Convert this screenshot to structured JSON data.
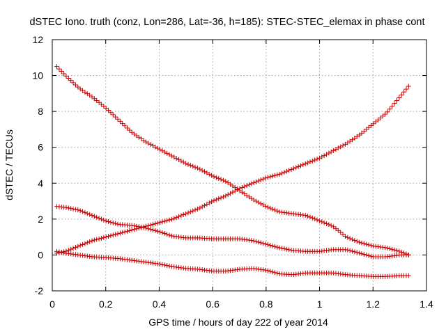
{
  "chart_data": {
    "type": "scatter",
    "title": "dSTEC Iono. truth (conz, Lon=286, Lat=-36, h=185): STEC-STEC_elemax in phase cont",
    "xlabel": "GPS time / hours of day 222 of year 2014",
    "ylabel": "dSTEC  / TECUs",
    "xlim": [
      0,
      1.4
    ],
    "ylim": [
      -2,
      12
    ],
    "xticks": [
      "0",
      "0.2",
      "0.4",
      "0.6",
      "0.8",
      "1",
      "1.2",
      "1.4"
    ],
    "yticks": [
      "-2",
      "0",
      "2",
      "4",
      "6",
      "8",
      "10",
      "12"
    ],
    "grid": true,
    "marker": "plus",
    "color": "#cc0000",
    "series": [
      {
        "x": [
          0.017,
          0.05,
          0.1,
          0.15,
          0.2,
          0.25,
          0.3,
          0.35,
          0.4,
          0.45,
          0.5,
          0.55,
          0.6,
          0.65,
          0.7,
          0.75,
          0.8,
          0.85,
          0.9,
          0.95,
          1.0,
          1.05,
          1.1,
          1.15,
          1.2,
          1.25,
          1.3,
          1.333
        ],
        "y": [
          10.5,
          10.0,
          9.3,
          8.8,
          8.2,
          7.5,
          6.8,
          6.3,
          5.9,
          5.5,
          5.1,
          4.8,
          4.4,
          4.1,
          3.6,
          3.1,
          2.7,
          2.4,
          2.3,
          2.2,
          1.9,
          1.6,
          1.0,
          0.7,
          0.5,
          0.4,
          0.2,
          0.0
        ]
      },
      {
        "x": [
          0.017,
          0.05,
          0.1,
          0.15,
          0.2,
          0.25,
          0.3,
          0.35,
          0.4,
          0.45,
          0.5,
          0.55,
          0.6,
          0.65,
          0.7,
          0.75,
          0.8,
          0.85,
          0.9,
          0.95,
          1.0,
          1.05,
          1.1,
          1.15,
          1.2,
          1.25,
          1.3,
          1.333
        ],
        "y": [
          0.1,
          0.2,
          0.5,
          0.8,
          1.0,
          1.2,
          1.4,
          1.6,
          1.8,
          2.0,
          2.3,
          2.6,
          3.0,
          3.3,
          3.7,
          4.0,
          4.3,
          4.5,
          4.8,
          5.1,
          5.4,
          5.8,
          6.2,
          6.7,
          7.3,
          7.9,
          8.8,
          9.4
        ]
      },
      {
        "x": [
          0.017,
          0.05,
          0.1,
          0.15,
          0.2,
          0.25,
          0.3,
          0.35,
          0.4,
          0.45,
          0.5,
          0.55,
          0.6,
          0.65,
          0.7,
          0.75,
          0.8,
          0.85,
          0.9,
          0.95,
          1.0,
          1.05,
          1.1,
          1.15,
          1.2,
          1.25,
          1.3,
          1.333
        ],
        "y": [
          2.7,
          2.65,
          2.5,
          2.2,
          1.9,
          1.7,
          1.65,
          1.5,
          1.3,
          1.05,
          0.95,
          0.95,
          0.9,
          0.9,
          0.9,
          0.8,
          0.6,
          0.4,
          0.25,
          0.2,
          0.2,
          0.3,
          0.3,
          0.1,
          -0.1,
          -0.1,
          0.0,
          0.0
        ]
      },
      {
        "x": [
          0.017,
          0.05,
          0.1,
          0.15,
          0.2,
          0.25,
          0.3,
          0.35,
          0.4,
          0.45,
          0.5,
          0.55,
          0.6,
          0.65,
          0.7,
          0.75,
          0.8,
          0.85,
          0.9,
          0.95,
          1.0,
          1.05,
          1.1,
          1.15,
          1.2,
          1.25,
          1.3,
          1.333
        ],
        "y": [
          0.2,
          0.1,
          0.0,
          -0.1,
          -0.15,
          -0.2,
          -0.3,
          -0.4,
          -0.5,
          -0.65,
          -0.75,
          -0.8,
          -0.9,
          -0.9,
          -0.8,
          -0.75,
          -0.85,
          -1.05,
          -1.1,
          -1.0,
          -1.0,
          -1.0,
          -1.1,
          -1.15,
          -1.2,
          -1.2,
          -1.15,
          -1.15
        ]
      }
    ]
  }
}
